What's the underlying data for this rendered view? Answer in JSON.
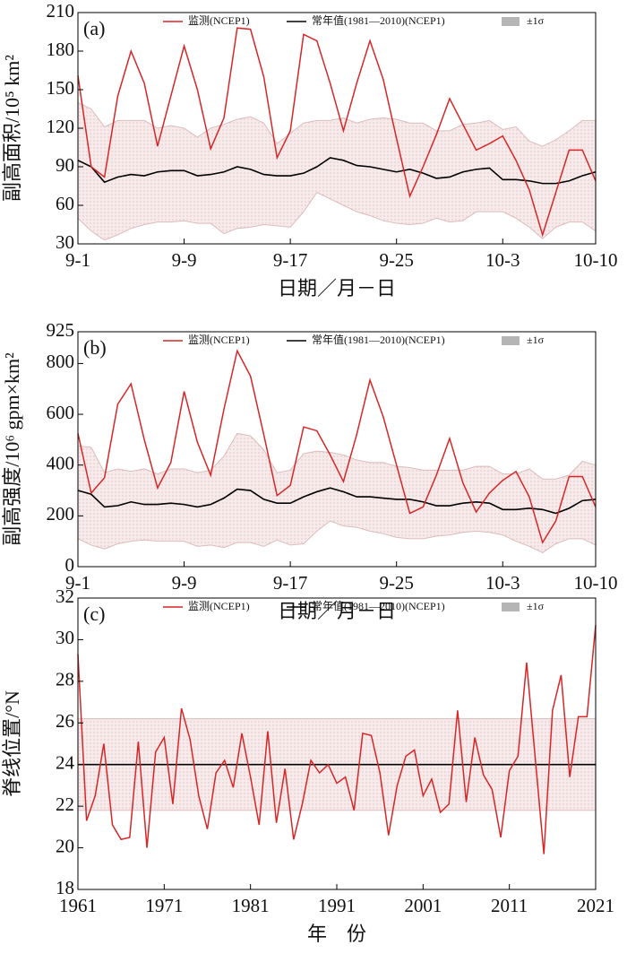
{
  "chart_data": [
    {
      "type": "line",
      "panel_label": "(a)",
      "ylabel": "副高面积/10⁵ km²",
      "xlabel": "日期／月－日",
      "categories": [
        "9-1",
        null,
        null,
        null,
        null,
        null,
        null,
        null,
        "9-9",
        null,
        null,
        null,
        null,
        null,
        null,
        null,
        "9-17",
        null,
        null,
        null,
        null,
        null,
        null,
        null,
        "9-25",
        null,
        null,
        null,
        null,
        null,
        null,
        null,
        "10-3",
        null,
        null,
        null,
        null,
        null,
        null,
        "10-10"
      ],
      "ylim": [
        30,
        210
      ],
      "yticks": [
        30,
        60,
        90,
        120,
        150,
        180,
        210
      ],
      "series": [
        {
          "name": "监测(NCEP1)",
          "color": "#d62728",
          "values": [
            161,
            90,
            82,
            145,
            180,
            155,
            106,
            145,
            184,
            150,
            104,
            128,
            198,
            197,
            160,
            97,
            118,
            193,
            188,
            155,
            118,
            155,
            188,
            158,
            112,
            67,
            90,
            115,
            143,
            123,
            103,
            108,
            114,
            95,
            72,
            37,
            70,
            103,
            103,
            79
          ]
        },
        {
          "name": "常年值(1981—2010)(NCEP1)",
          "color": "#000000",
          "values": [
            95,
            90,
            78,
            82,
            84,
            83,
            86,
            87,
            87,
            83,
            84,
            86,
            90,
            88,
            84,
            83,
            83,
            85,
            90,
            97,
            95,
            91,
            90,
            88,
            86,
            88,
            85,
            81,
            82,
            86,
            88,
            89,
            80,
            80,
            79,
            77,
            77,
            79,
            83,
            86
          ]
        },
        {
          "name": "±1σ",
          "color": "#b5b5b5",
          "upper": [
            140,
            135,
            121,
            126,
            126,
            126,
            120,
            122,
            120,
            113,
            120,
            123,
            127,
            129,
            124,
            108,
            116,
            124,
            126,
            126,
            128,
            124,
            127,
            128,
            127,
            124,
            124,
            118,
            118,
            123,
            124,
            126,
            119,
            121,
            110,
            106,
            111,
            118,
            126,
            126
          ],
          "lower": [
            50,
            40,
            33,
            37,
            42,
            45,
            47,
            47,
            48,
            46,
            46,
            38,
            42,
            43,
            45,
            44,
            43,
            55,
            70,
            65,
            60,
            55,
            52,
            48,
            46,
            45,
            46,
            50,
            47,
            48,
            55,
            55,
            55,
            50,
            43,
            34,
            43,
            47,
            47,
            40
          ]
        }
      ]
    },
    {
      "type": "line",
      "panel_label": "(b)",
      "ylabel": "副高强度/10⁶ gpm×km²",
      "xlabel": "日期／月－日",
      "categories": [
        "9-1",
        null,
        null,
        null,
        null,
        null,
        null,
        null,
        "9-9",
        null,
        null,
        null,
        null,
        null,
        null,
        null,
        "9-17",
        null,
        null,
        null,
        null,
        null,
        null,
        null,
        "9-25",
        null,
        null,
        null,
        null,
        null,
        null,
        null,
        "10-3",
        null,
        null,
        null,
        null,
        null,
        null,
        "10-10"
      ],
      "ylim": [
        0,
        925
      ],
      "yticks": [
        0,
        200,
        400,
        600,
        800,
        925
      ],
      "series": [
        {
          "name": "监测(NCEP1)",
          "color": "#d62728",
          "values": [
            525,
            290,
            350,
            640,
            720,
            500,
            310,
            410,
            690,
            490,
            360,
            620,
            850,
            750,
            520,
            280,
            320,
            550,
            535,
            440,
            335,
            520,
            735,
            590,
            400,
            210,
            235,
            360,
            505,
            330,
            215,
            290,
            340,
            375,
            275,
            95,
            180,
            355,
            355,
            235
          ]
        },
        {
          "name": "常年值(1981—2010)(NCEP1)",
          "color": "#000000",
          "values": [
            300,
            285,
            235,
            240,
            255,
            245,
            245,
            250,
            245,
            235,
            245,
            270,
            305,
            300,
            265,
            250,
            250,
            275,
            295,
            310,
            295,
            275,
            275,
            270,
            265,
            265,
            255,
            240,
            240,
            250,
            255,
            250,
            225,
            225,
            230,
            225,
            210,
            230,
            260,
            265
          ]
        },
        {
          "name": "±1σ",
          "color": "#b5b5b5",
          "upper": [
            475,
            470,
            370,
            385,
            375,
            385,
            365,
            385,
            385,
            370,
            380,
            435,
            525,
            515,
            460,
            370,
            380,
            445,
            455,
            450,
            440,
            420,
            410,
            410,
            395,
            390,
            380,
            380,
            380,
            380,
            395,
            395,
            365,
            365,
            385,
            345,
            345,
            360,
            415,
            400
          ],
          "lower": [
            110,
            85,
            70,
            90,
            100,
            105,
            100,
            100,
            100,
            80,
            85,
            75,
            95,
            95,
            80,
            105,
            85,
            90,
            140,
            180,
            160,
            155,
            140,
            130,
            115,
            110,
            110,
            120,
            125,
            135,
            140,
            135,
            125,
            100,
            80,
            55,
            90,
            110,
            110,
            85
          ]
        }
      ]
    },
    {
      "type": "line",
      "panel_label": "(c)",
      "ylabel": "脊线位置/°N",
      "xlabel": "年　份",
      "x": [
        1961,
        1962,
        1963,
        1964,
        1965,
        1966,
        1967,
        1968,
        1969,
        1970,
        1971,
        1972,
        1973,
        1974,
        1975,
        1976,
        1977,
        1978,
        1979,
        1980,
        1981,
        1982,
        1983,
        1984,
        1985,
        1986,
        1987,
        1988,
        1989,
        1990,
        1991,
        1992,
        1993,
        1994,
        1995,
        1996,
        1997,
        1998,
        1999,
        2000,
        2001,
        2002,
        2003,
        2004,
        2005,
        2006,
        2007,
        2008,
        2009,
        2010,
        2011,
        2012,
        2013,
        2014,
        2015,
        2016,
        2017,
        2018,
        2019,
        2020,
        2021
      ],
      "xlim": [
        1961,
        2021
      ],
      "xticks": [
        1961,
        1971,
        1981,
        1991,
        2001,
        2011,
        2021
      ],
      "ylim": [
        18,
        32
      ],
      "yticks": [
        18,
        20,
        22,
        24,
        26,
        28,
        30,
        32
      ],
      "series": [
        {
          "name": "监测(NCEP1)",
          "color": "#d62728",
          "values": [
            29.3,
            21.3,
            22.5,
            25.0,
            21.1,
            20.4,
            20.5,
            25.1,
            20.0,
            24.6,
            25.3,
            22.1,
            26.7,
            25.2,
            22.5,
            20.9,
            23.6,
            24.2,
            22.9,
            25.5,
            23.4,
            21.1,
            25.6,
            21.2,
            23.8,
            20.4,
            22.1,
            24.2,
            23.6,
            24.0,
            23.1,
            23.4,
            21.8,
            25.5,
            25.4,
            23.6,
            20.6,
            23.0,
            24.4,
            24.7,
            22.5,
            23.3,
            21.7,
            22.1,
            26.6,
            22.2,
            25.3,
            23.5,
            22.8,
            20.5,
            23.7,
            24.4,
            28.9,
            24.3,
            19.7,
            26.6,
            28.3,
            23.4,
            26.3,
            26.3,
            30.7
          ]
        },
        {
          "name": "常年值(1981—2010)(NCEP1)",
          "color": "#000000",
          "x": [
            1961,
            2021
          ],
          "values": [
            24.0,
            24.0
          ]
        },
        {
          "name": "±1σ",
          "color": "#b5b5b5",
          "x": [
            1961,
            2021
          ],
          "upper": [
            26.2,
            26.2
          ],
          "lower": [
            21.8,
            21.8
          ]
        }
      ]
    }
  ]
}
